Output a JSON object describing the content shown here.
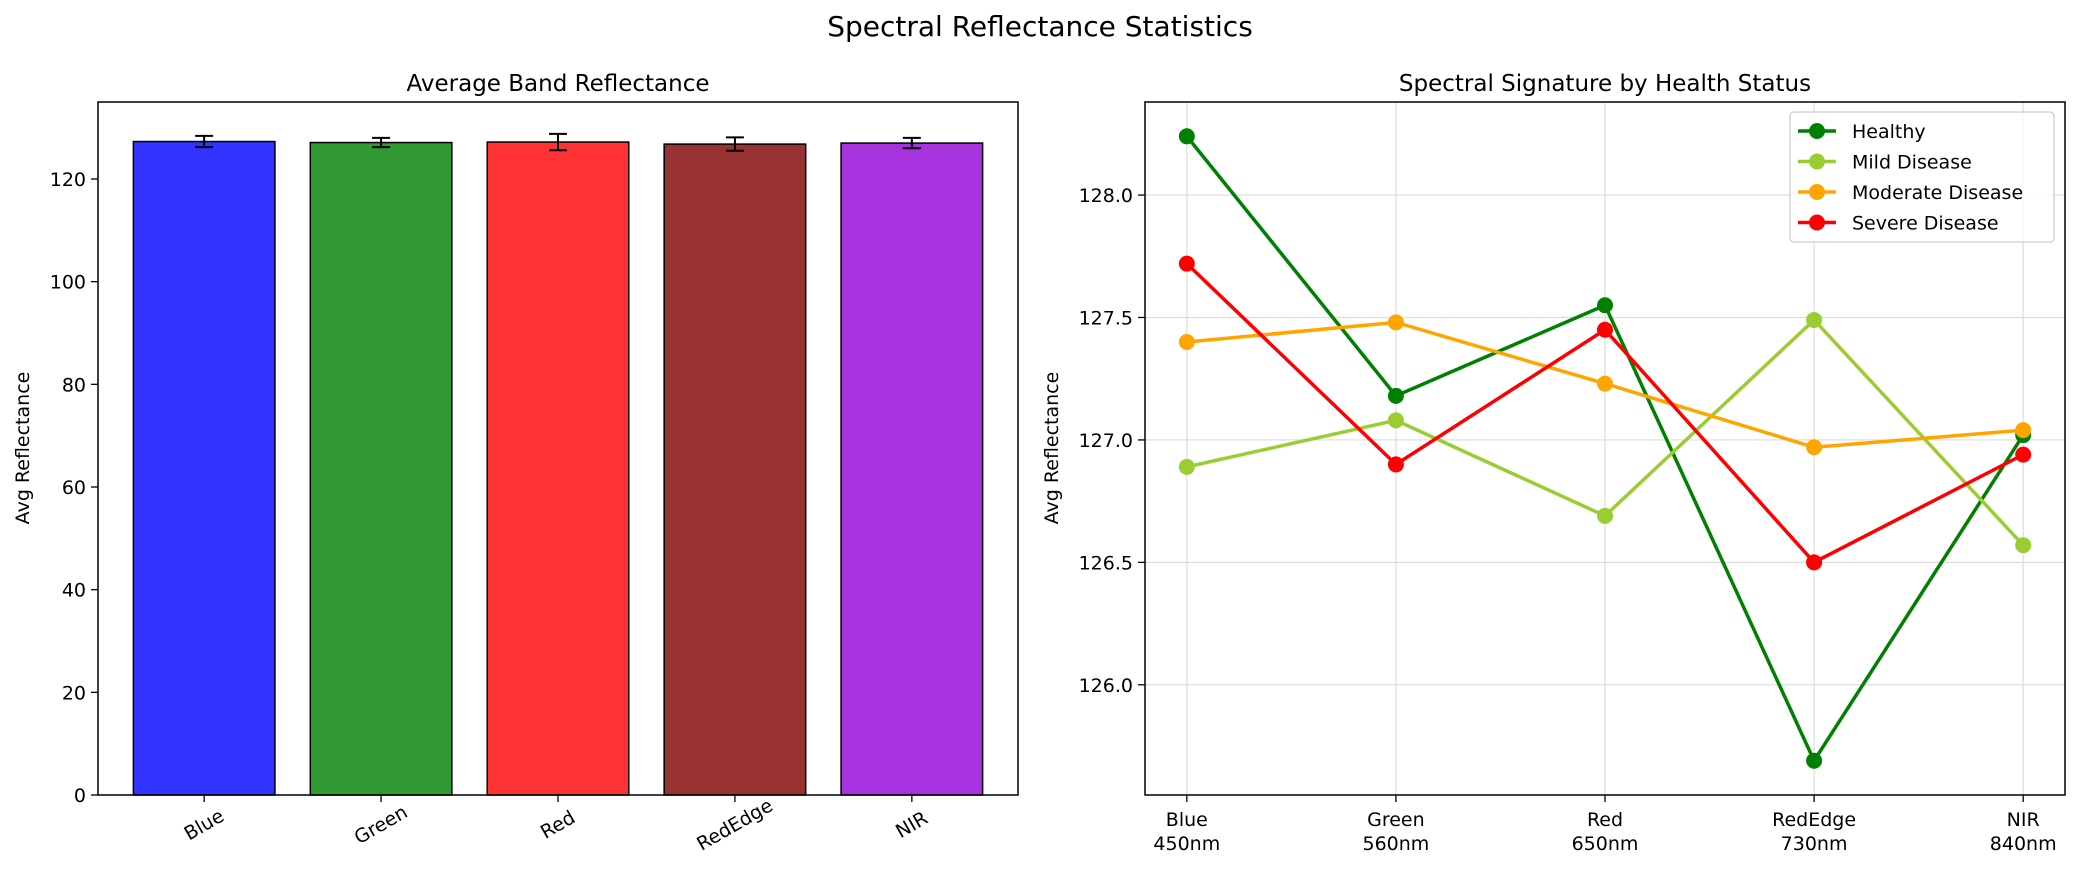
{
  "figure_title": "Spectral Reflectance Statistics",
  "chart_data": [
    {
      "type": "bar",
      "title": "Average Band Reflectance",
      "xlabel": "",
      "ylabel": "Avg Reflectance",
      "categories": [
        "Blue",
        "Green",
        "Red",
        "RedEdge",
        "NIR"
      ],
      "values": [
        127.3,
        127.1,
        127.2,
        126.8,
        127.0
      ],
      "errors": [
        1.1,
        0.9,
        1.6,
        1.3,
        1.0
      ],
      "colors": [
        "#3333ff",
        "#339933",
        "#ff3333",
        "#993333",
        "#a633dd"
      ],
      "ylim": [
        0,
        135
      ],
      "yticks": [
        0,
        20,
        40,
        60,
        80,
        100,
        120
      ],
      "ytick_labels": [
        "0",
        "20",
        "40",
        "60",
        "80",
        "100",
        "120"
      ],
      "grid": false
    },
    {
      "type": "line",
      "title": "Spectral Signature by Health Status",
      "xlabel": "",
      "ylabel": "Avg Reflectance",
      "categories": [
        "Blue\n450nm",
        "Green\n560nm",
        "Red\n650nm",
        "RedEdge\n730nm",
        "NIR\n840nm"
      ],
      "ylim": [
        125.55,
        128.38
      ],
      "yticks": [
        126.0,
        126.5,
        127.0,
        127.5,
        128.0
      ],
      "ytick_labels": [
        "126.0",
        "126.5",
        "127.0",
        "127.5",
        "128.0"
      ],
      "grid": true,
      "legend_position": "top-right",
      "series": [
        {
          "name": "Healthy",
          "color": "#008000",
          "values": [
            128.24,
            127.18,
            127.55,
            125.69,
            127.02
          ]
        },
        {
          "name": "Mild Disease",
          "color": "#9acd32",
          "values": [
            126.89,
            127.08,
            126.69,
            127.49,
            126.57
          ]
        },
        {
          "name": "Moderate Disease",
          "color": "#ffa500",
          "values": [
            127.4,
            127.48,
            127.23,
            126.97,
            127.04
          ]
        },
        {
          "name": "Severe Disease",
          "color": "#ff0000",
          "values": [
            127.72,
            126.9,
            127.45,
            126.5,
            126.94
          ]
        }
      ]
    }
  ]
}
